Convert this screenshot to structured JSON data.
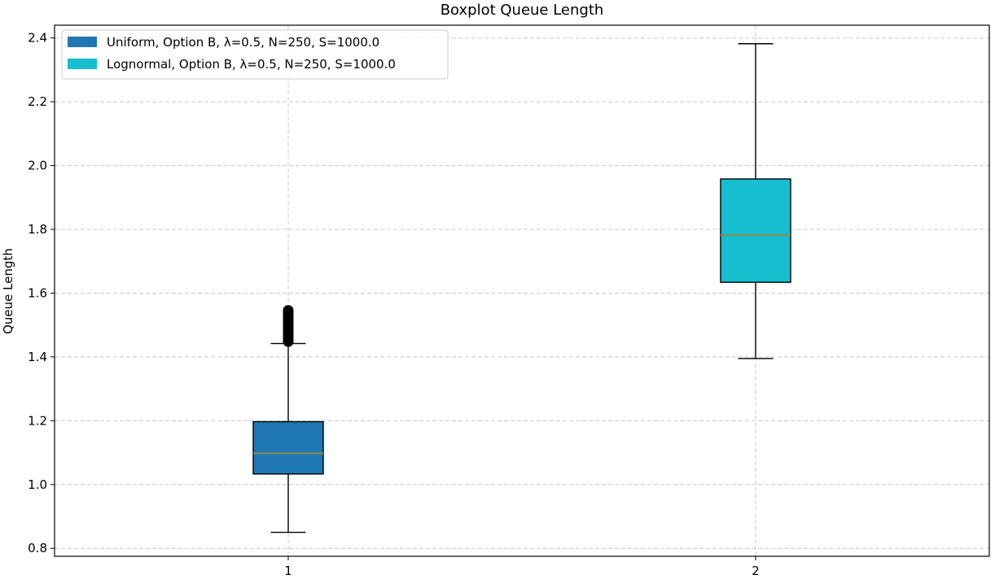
{
  "chart_data": {
    "type": "boxplot",
    "title": "Boxplot Queue Length",
    "xlabel": "",
    "ylabel": "Queue Length",
    "categories": [
      "1",
      "2"
    ],
    "ylim": [
      0.775,
      2.44
    ],
    "yticks": [
      0.8,
      1.0,
      1.2,
      1.4,
      1.6,
      1.8,
      2.0,
      2.2,
      2.4
    ],
    "ytick_labels": [
      "0.8",
      "1.0",
      "1.2",
      "1.4",
      "1.6",
      "1.8",
      "2.0",
      "2.2",
      "2.4"
    ],
    "grid": true,
    "legend_position": "top-left",
    "series": [
      {
        "name": "Uniform, Option B, λ=0.5, N=250, S=1000.0",
        "color": "#1f77b4",
        "whisker_low": 0.85,
        "q1": 1.033,
        "median": 1.098,
        "q3": 1.197,
        "whisker_high": 1.442,
        "outliers": [
          1.448,
          1.455,
          1.462,
          1.47,
          1.478,
          1.486,
          1.494,
          1.502,
          1.51,
          1.518,
          1.526,
          1.534,
          1.542,
          1.546
        ]
      },
      {
        "name": "Lognormal, Option B, λ=0.5, N=250, S=1000.0",
        "color": "#17becf",
        "whisker_low": 1.395,
        "q1": 1.634,
        "median": 1.782,
        "q3": 1.958,
        "whisker_high": 2.382,
        "outliers": []
      }
    ],
    "median_color": "#8c8c4a"
  }
}
